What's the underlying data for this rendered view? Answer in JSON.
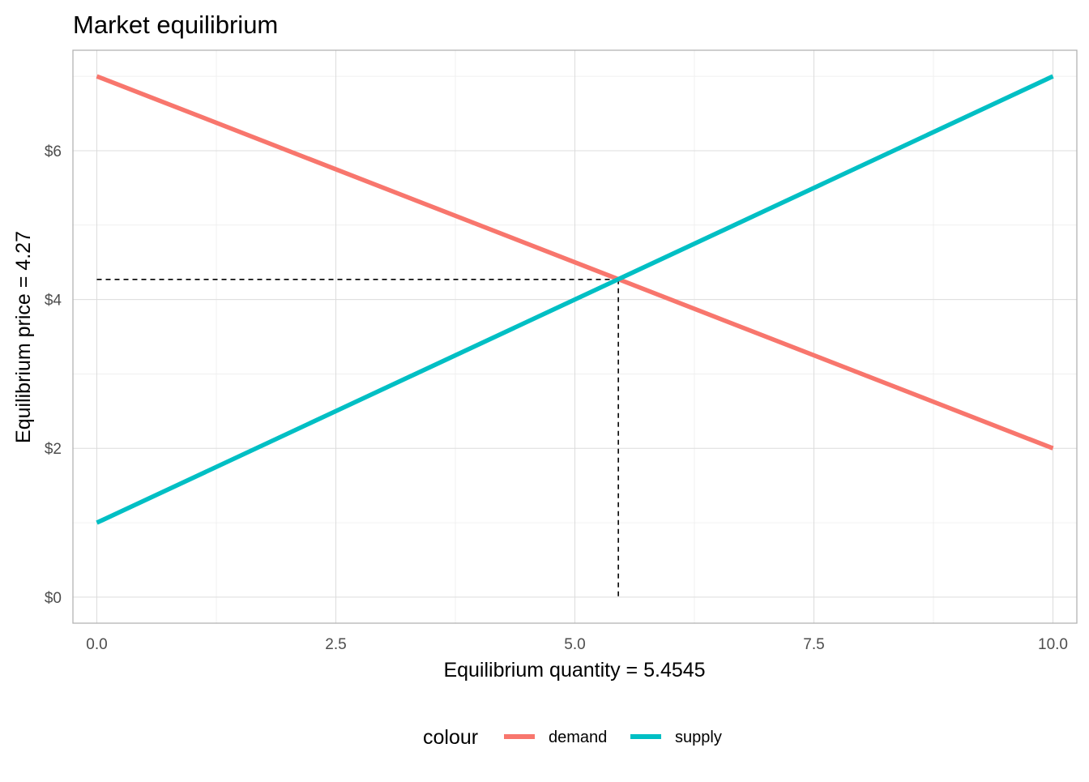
{
  "chart_data": {
    "type": "line",
    "title": "Market equilibrium",
    "xlabel": "Equilibrium quantity = 5.4545",
    "ylabel": "Equilibrium price = 4.27",
    "xlim": [
      -0.25,
      10.25
    ],
    "ylim": [
      -0.35,
      7.35
    ],
    "x_ticks": [
      0,
      2.5,
      5,
      7.5,
      10
    ],
    "x_tick_labels": [
      "0.0",
      "2.5",
      "5.0",
      "7.5",
      "10.0"
    ],
    "y_ticks": [
      0,
      2,
      4,
      6
    ],
    "y_tick_labels": [
      "$0",
      "$2",
      "$4",
      "$6"
    ],
    "grid": true,
    "legend": {
      "title": "colour",
      "position": "bottom"
    },
    "series": [
      {
        "name": "demand",
        "color": "#F8766D",
        "x": [
          0,
          10
        ],
        "y": [
          7,
          2
        ]
      },
      {
        "name": "supply",
        "color": "#00BFC4",
        "x": [
          0,
          10
        ],
        "y": [
          1,
          7
        ]
      }
    ],
    "equilibrium": {
      "x": 5.4545,
      "y": 4.27
    }
  }
}
